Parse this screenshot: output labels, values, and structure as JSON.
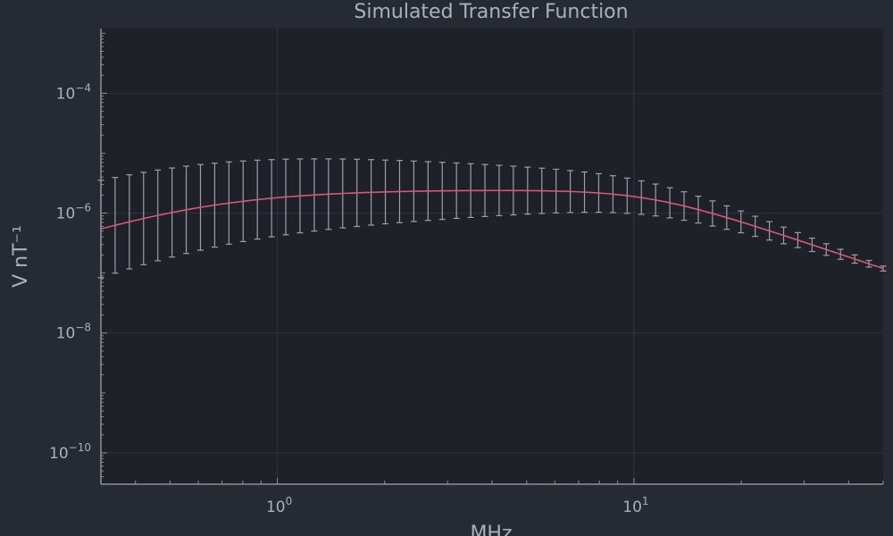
{
  "chart_data": {
    "type": "line",
    "title": "Simulated Transfer Function",
    "xlabel": "MHz",
    "ylabel": "V nT⁻¹",
    "x_scale": "log",
    "y_scale": "log",
    "xlim": [
      0.32,
      50
    ],
    "ylim": [
      3e-11,
      0.0012
    ],
    "grid": true,
    "legend": "none",
    "x_ticks": [
      {
        "value": 1,
        "base": "10",
        "exp": "0"
      },
      {
        "value": 10,
        "base": "10",
        "exp": "1"
      }
    ],
    "y_ticks": [
      {
        "value": 0.0001,
        "base": "10",
        "exp": "−4"
      },
      {
        "value": 1e-06,
        "base": "10",
        "exp": "−6"
      },
      {
        "value": 1e-08,
        "base": "10",
        "exp": "−8"
      },
      {
        "value": 1e-10,
        "base": "10",
        "exp": "−10"
      }
    ],
    "series": [
      {
        "name": "transfer function",
        "curve": {
          "a": 2.46e-06,
          "f1": 0.6,
          "f2": 11.0,
          "exponent": 4
        },
        "points": {
          "f_min": 0.32,
          "f_max": 50,
          "count": 56
        },
        "error_factor": {
          "low_f": 6.5,
          "high_f": 1.1
        }
      }
    ],
    "colors": {
      "curve": "#d9576f",
      "error_bars": "#9aa0a8",
      "axis": "#8b919c",
      "grid": "#2e333c",
      "text": "#a9b1bd",
      "plot_bg": "#1f2128",
      "page_bg": "#262a33"
    }
  }
}
